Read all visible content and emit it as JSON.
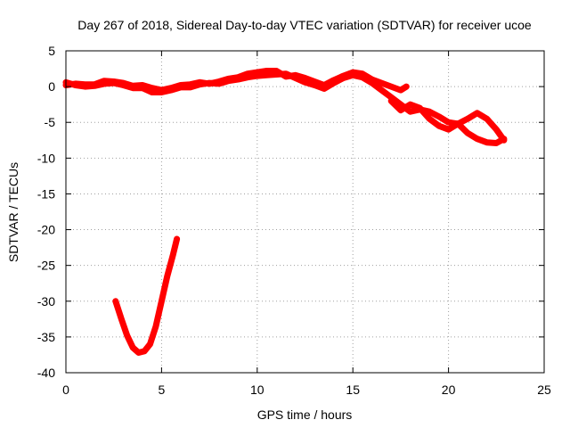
{
  "chart_data": {
    "type": "scatter",
    "title": "Day 267 of 2018, Sidereal Day-to-day VTEC variation (SDTVAR) for receiver ucoe",
    "xlabel": "GPS time / hours",
    "ylabel": "SDTVAR / TECUs",
    "xlim": [
      0,
      25
    ],
    "ylim": [
      -40,
      5
    ],
    "xticks": [
      0,
      5,
      10,
      15,
      20,
      25
    ],
    "yticks": [
      5,
      0,
      -5,
      -10,
      -15,
      -20,
      -25,
      -30,
      -35,
      -40
    ],
    "grid": true,
    "series_color": "#ff0000",
    "series": [
      {
        "name": "SDTVAR",
        "segments": [
          [
            [
              2.6,
              -30
            ],
            [
              2.9,
              -32.5
            ],
            [
              3.2,
              -34.8
            ],
            [
              3.5,
              -36.5
            ],
            [
              3.8,
              -37.2
            ],
            [
              4.1,
              -37
            ],
            [
              4.4,
              -36
            ],
            [
              4.7,
              -33.5
            ],
            [
              5.0,
              -30
            ],
            [
              5.3,
              -26.5
            ],
            [
              5.6,
              -23.5
            ],
            [
              5.8,
              -21.3
            ]
          ],
          [
            [
              0,
              0.6
            ],
            [
              0.5,
              0.2
            ],
            [
              1,
              0
            ],
            [
              1.5,
              0.1
            ],
            [
              2,
              0.4
            ],
            [
              2.5,
              0.5
            ],
            [
              3,
              0.2
            ],
            [
              3.5,
              -0.2
            ],
            [
              4,
              -0.2
            ],
            [
              4.5,
              -0.8
            ],
            [
              5,
              -0.8
            ],
            [
              5.5,
              -0.5
            ],
            [
              6,
              -0.1
            ],
            [
              6.5,
              -0.1
            ],
            [
              7,
              0.3
            ],
            [
              7.5,
              0.5
            ],
            [
              8,
              0.4
            ],
            [
              8.5,
              0.8
            ],
            [
              9,
              1
            ],
            [
              9.5,
              1.3
            ],
            [
              10,
              1.5
            ],
            [
              10.5,
              1.6
            ],
            [
              11,
              1.7
            ],
            [
              11.5,
              1.8
            ],
            [
              12,
              1.2
            ],
            [
              12.5,
              0.6
            ],
            [
              13,
              0.2
            ],
            [
              13.5,
              -0.3
            ],
            [
              14,
              0.5
            ],
            [
              14.5,
              1.2
            ],
            [
              15,
              1.6
            ],
            [
              15.5,
              1.3
            ],
            [
              16,
              0.5
            ],
            [
              16.5,
              -0.5
            ],
            [
              17,
              -1.5
            ],
            [
              17.5,
              -2.5
            ],
            [
              18,
              -3.5
            ],
            [
              18.5,
              -3.2
            ],
            [
              19,
              -3.5
            ],
            [
              19.5,
              -4.2
            ],
            [
              20,
              -5
            ],
            [
              20.5,
              -5.2
            ],
            [
              21,
              -4.5
            ],
            [
              21.5,
              -3.7
            ],
            [
              22,
              -4.5
            ],
            [
              22.5,
              -6
            ],
            [
              22.9,
              -7.5
            ]
          ],
          [
            [
              0,
              0.2
            ],
            [
              0.5,
              0.4
            ],
            [
              1,
              0.3
            ],
            [
              1.5,
              0.3
            ],
            [
              2,
              0.8
            ],
            [
              2.5,
              0.7
            ],
            [
              3,
              0.5
            ],
            [
              3.5,
              0.1
            ],
            [
              4,
              0.2
            ],
            [
              4.5,
              -0.2
            ],
            [
              5,
              -0.5
            ],
            [
              5.5,
              -0.2
            ],
            [
              6,
              0.2
            ],
            [
              6.5,
              0.3
            ],
            [
              7,
              0.6
            ],
            [
              7.5,
              0.4
            ],
            [
              8,
              0.7
            ],
            [
              8.5,
              1.1
            ],
            [
              9,
              1.3
            ],
            [
              9.5,
              1.8
            ],
            [
              10,
              2
            ],
            [
              10.5,
              2.2
            ],
            [
              11,
              2.2
            ],
            [
              11.5,
              1.4
            ],
            [
              12,
              1.6
            ],
            [
              12.5,
              1.2
            ],
            [
              13,
              0.7
            ],
            [
              13.5,
              0.2
            ],
            [
              14,
              0.9
            ],
            [
              14.5,
              1.5
            ],
            [
              15,
              2
            ],
            [
              15.5,
              1.8
            ],
            [
              16,
              1
            ],
            [
              16.5,
              0.5
            ],
            [
              17,
              0
            ],
            [
              17.5,
              -0.5
            ],
            [
              17.8,
              0
            ]
          ],
          [
            [
              17,
              -2
            ],
            [
              17.5,
              -3.3
            ],
            [
              18,
              -2.5
            ],
            [
              18.5,
              -3
            ],
            [
              19,
              -4.5
            ],
            [
              19.5,
              -5.5
            ],
            [
              20,
              -6
            ],
            [
              20.5,
              -5.2
            ],
            [
              21,
              -6.5
            ],
            [
              21.5,
              -7.3
            ],
            [
              22,
              -7.8
            ],
            [
              22.5,
              -7.9
            ],
            [
              22.9,
              -7.3
            ]
          ]
        ]
      }
    ]
  }
}
